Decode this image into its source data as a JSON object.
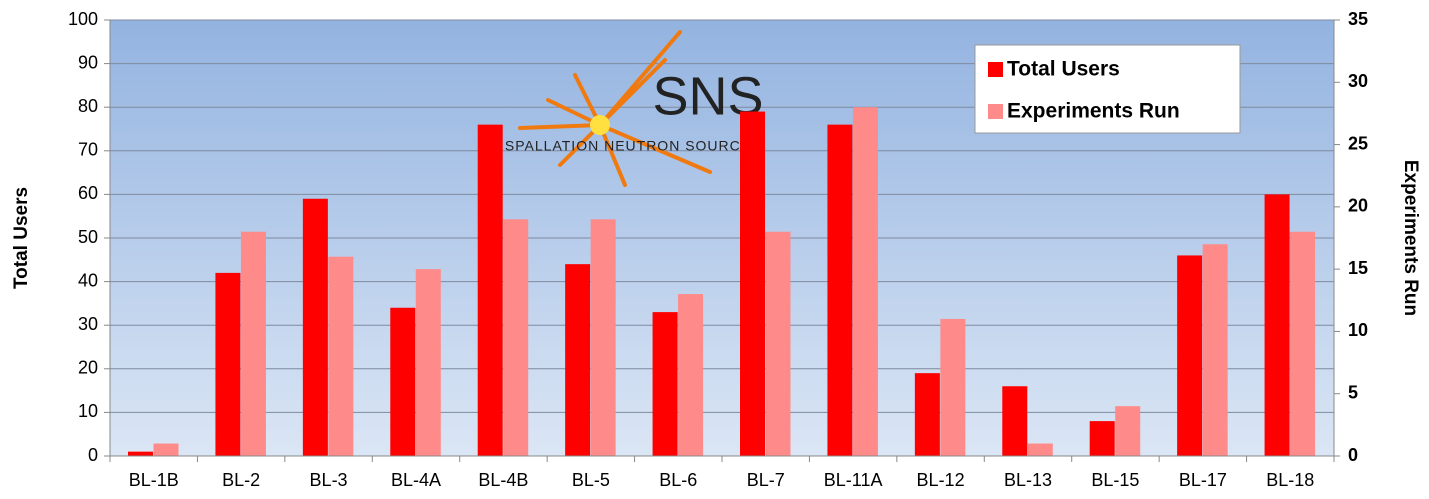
{
  "chart_data": {
    "type": "bar",
    "categories": [
      "BL-1B",
      "BL-2",
      "BL-3",
      "BL-4A",
      "BL-4B",
      "BL-5",
      "BL-6",
      "BL-7",
      "BL-11A",
      "BL-12",
      "BL-13",
      "BL-15",
      "BL-17",
      "BL-18"
    ],
    "series": [
      {
        "name": "Total Users",
        "color": "#ff0000",
        "values": [
          1,
          42,
          59,
          34,
          76,
          44,
          33,
          79,
          76,
          19,
          16,
          8,
          46,
          60
        ]
      },
      {
        "name": "Experiments Run",
        "color": "#ff8a8a",
        "axis": "y2",
        "values": [
          1,
          18,
          16,
          15,
          19,
          19,
          13,
          18,
          28,
          11,
          1,
          4,
          17,
          18
        ]
      }
    ],
    "ylabel": "Total Users",
    "y2label": "Experiments Run",
    "ylim": [
      0,
      100
    ],
    "yticks": [
      0,
      10,
      20,
      30,
      40,
      50,
      60,
      70,
      80,
      90,
      100
    ],
    "y2lim": [
      0,
      35
    ],
    "y2ticks": [
      0,
      5,
      10,
      15,
      20,
      25,
      30,
      35
    ],
    "grid": true,
    "legend": "upper right",
    "annotations": [
      "SNS",
      "SPALLATION NEUTRON SOURCE"
    ]
  }
}
